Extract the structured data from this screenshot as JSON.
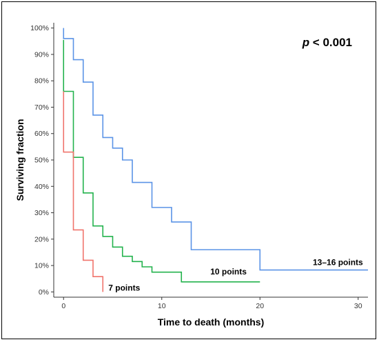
{
  "chart_data": {
    "type": "line",
    "step": true,
    "xlabel": "Time to death (months)",
    "ylabel": "Surviving fraction",
    "xlim": [
      -1,
      31
    ],
    "ylim": [
      -0.02,
      1.02
    ],
    "x_ticks": [
      0,
      10,
      20,
      30
    ],
    "x_tick_labels": [
      "0",
      "10",
      "20",
      "30"
    ],
    "y_ticks": [
      0,
      0.1,
      0.2,
      0.3,
      0.4,
      0.5,
      0.6,
      0.7,
      0.8,
      0.9,
      1.0
    ],
    "y_tick_labels": [
      "0%",
      "10%",
      "20%",
      "30%",
      "40%",
      "50%",
      "60%",
      "70%",
      "80%",
      "90%",
      "100%"
    ],
    "grid": false,
    "annotation": {
      "italic": "p",
      "rest": " < 0.001"
    },
    "series": [
      {
        "name": "13–16 points",
        "color": "#5a93e6",
        "x": [
          0,
          0,
          1,
          2,
          3,
          4,
          5,
          6,
          7,
          9,
          11,
          13,
          20,
          31
        ],
        "y": [
          1.0,
          0.96,
          0.88,
          0.795,
          0.67,
          0.585,
          0.545,
          0.5,
          0.415,
          0.32,
          0.265,
          0.16,
          0.083,
          0.083
        ]
      },
      {
        "name": "10 points",
        "color": "#22b24c",
        "x": [
          0,
          0,
          1,
          2,
          3,
          4,
          5,
          6,
          7,
          8,
          9,
          12,
          20
        ],
        "y": [
          0.955,
          0.76,
          0.51,
          0.375,
          0.25,
          0.21,
          0.17,
          0.135,
          0.115,
          0.095,
          0.075,
          0.038,
          0.038
        ]
      },
      {
        "name": "7 points",
        "color": "#f0736b",
        "x": [
          0,
          0,
          1,
          2,
          3,
          4,
          4
        ],
        "y": [
          0.76,
          0.53,
          0.235,
          0.12,
          0.058,
          0.0,
          0.0
        ]
      }
    ]
  }
}
